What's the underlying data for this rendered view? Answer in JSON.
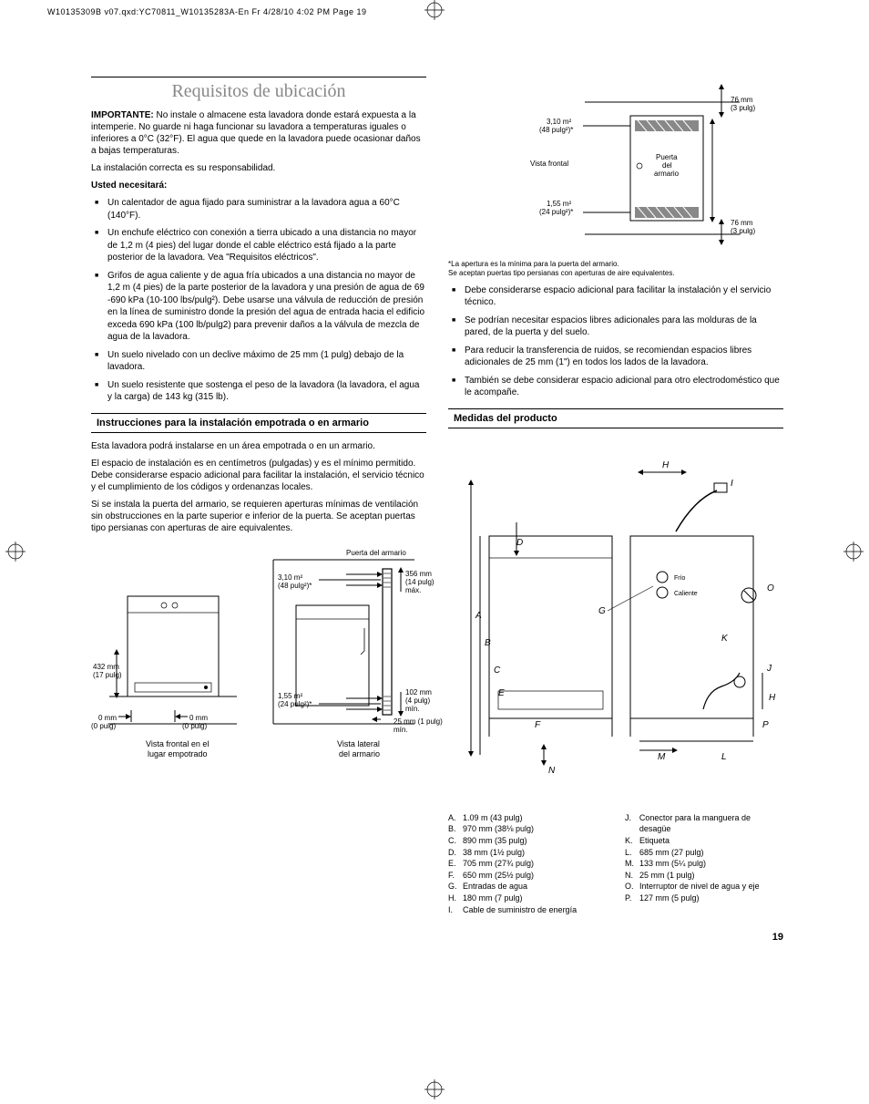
{
  "header": "W10135309B v07.qxd:YC70811_W10135283A-En Fr  4/28/10  4:02 PM  Page 19",
  "page_number": "19",
  "title": "Requisitos de ubicación",
  "important_label": "IMPORTANTE:",
  "important_text": " No instale o almacene esta lavadora donde estará expuesta a la intemperie. No guarde ni haga funcionar su lavadora a temperaturas iguales o inferiores a 0°C (32°F). El agua que quede en la lavadora puede ocasionar daños a bajas temperaturas.",
  "resp_text": "La instalación correcta es su responsabilidad.",
  "need_label": "Usted necesitará:",
  "needs": [
    "Un calentador de agua fijado para suministrar a la lavadora agua a 60°C (140°F).",
    "Un enchufe eléctrico con conexión a tierra ubicado a una distancia no mayor de 1,2 m (4 pies) del lugar donde el cable eléctrico está fijado a la parte posterior de la lavadora. Vea \"Requisitos eléctricos\".",
    "Grifos de agua caliente y de agua fría ubicados a una distancia no mayor de 1,2 m (4 pies) de la parte posterior de la lavadora y una presión de agua de 69 -690 kPa (10-100 lbs/pulg²). Debe usarse una válvula de reducción de presión en la línea de suministro donde la presión del agua de entrada hacia el edificio exceda 690 kPa (100 lb/pulg2) para prevenir daños a la válvula de mezcla de agua  de la lavadora.",
    "Un suelo nivelado con un declive máximo de 25 mm (1 pulg) debajo de la lavadora.",
    "Un suelo resistente que sostenga el peso de la lavadora (la lavadora, el agua y la carga) de 143 kg (315 lb)."
  ],
  "subsection1_title": "Instrucciones para la instalación empotrada o en armario",
  "sub1_p1": "Esta lavadora podrá instalarse en un área empotrada o en un armario.",
  "sub1_p2": "El espacio de instalación es en centímetros (pulgadas) y es el mínimo permitido. Debe considerarse espacio adicional para facilitar la instalación, el servicio técnico y el cumplimiento de los códigos y ordenanzas locales.",
  "sub1_p3": "Si se instala la puerta del armario, se requieren aperturas mínimas de ventilación sin obstrucciones en la parte superior e inferior de la puerta. Se aceptan puertas tipo persianas con aperturas de aire equivalentes.",
  "diagram1_labels": {
    "puerta": "Puerta del armario",
    "d356": "356 mm\n(14 pulg)\nmáx.",
    "d310": "3,10 m²\n(48 pulg²)*",
    "d432": "432 mm\n(17 pulg)",
    "d155": "1,55 m²\n(24 pulg²)*",
    "d102": "102 mm\n(4 pulg)\nmín.",
    "d0l": "0 mm\n(0 pulg)",
    "d0r": "0 mm\n(0 pulg)",
    "d25": "25 mm (1 pulg)\nmín.",
    "cap_l": "Vista frontal en el\nlugar empotrado",
    "cap_r": "Vista lateral\ndel armario"
  },
  "diagram2_labels": {
    "d76t": "76 mm\n(3 pulg)",
    "d310": "3,10 m²\n(48 pulg²)*",
    "vista": "Vista frontal",
    "puerta": "Puerta\ndel\narmario",
    "d155": "1,55 m²\n(24 pulg²)*",
    "d76b": "76 mm\n(3 pulg)"
  },
  "note_asterisk": "*La apertura es la mínima para la puerta del armario.\nSe aceptan puertas tipo persianas con aperturas de aire equivalentes.",
  "right_bullets": [
    "Debe considerarse espacio adicional para facilitar la instalación y el servicio técnico.",
    "Se podrían necesitar espacios libres adicionales para las molduras de la pared, de la puerta y del suelo.",
    "Para reducir la transferencia de ruidos, se recomiendan espacios libres adicionales de 25 mm (1\") en todos los lados de la lavadora.",
    "También se debe considerar espacio adicional para otro electrodoméstico que le acompañe."
  ],
  "subsection2_title": "Medidas del producto",
  "product_labels": {
    "frio": "Frío",
    "caliente": "Caliente"
  },
  "dims_left": [
    {
      "l": "A.",
      "t": "1.09 m (43 pulg)"
    },
    {
      "l": "B.",
      "t": "970 mm (38⅛ pulg)"
    },
    {
      "l": "C.",
      "t": "890 mm (35 pulg)"
    },
    {
      "l": "D.",
      "t": "38 mm (1½ pulg)"
    },
    {
      "l": "E.",
      "t": "705 mm (27¾ pulg)"
    },
    {
      "l": "F.",
      "t": "650 mm (25½ pulg)"
    },
    {
      "l": "G.",
      "t": "Entradas de agua"
    },
    {
      "l": "H.",
      "t": "180 mm (7 pulg)"
    },
    {
      "l": "I.",
      "t": "Cable de suministro de energía"
    }
  ],
  "dims_right": [
    {
      "l": "J.",
      "t": "Conector para la manguera de desagüe"
    },
    {
      "l": "K.",
      "t": "Etiqueta"
    },
    {
      "l": "L.",
      "t": "685 mm (27 pulg)"
    },
    {
      "l": "M.",
      "t": "133 mm (5¼ pulg)"
    },
    {
      "l": "N.",
      "t": "25 mm (1 pulg)"
    },
    {
      "l": "O.",
      "t": "Interruptor de nivel de agua y eje"
    },
    {
      "l": "P.",
      "t": "127 mm (5 pulg)"
    }
  ],
  "colors": {
    "title_gray": "#888888",
    "text": "#000000",
    "bg": "#ffffff"
  }
}
